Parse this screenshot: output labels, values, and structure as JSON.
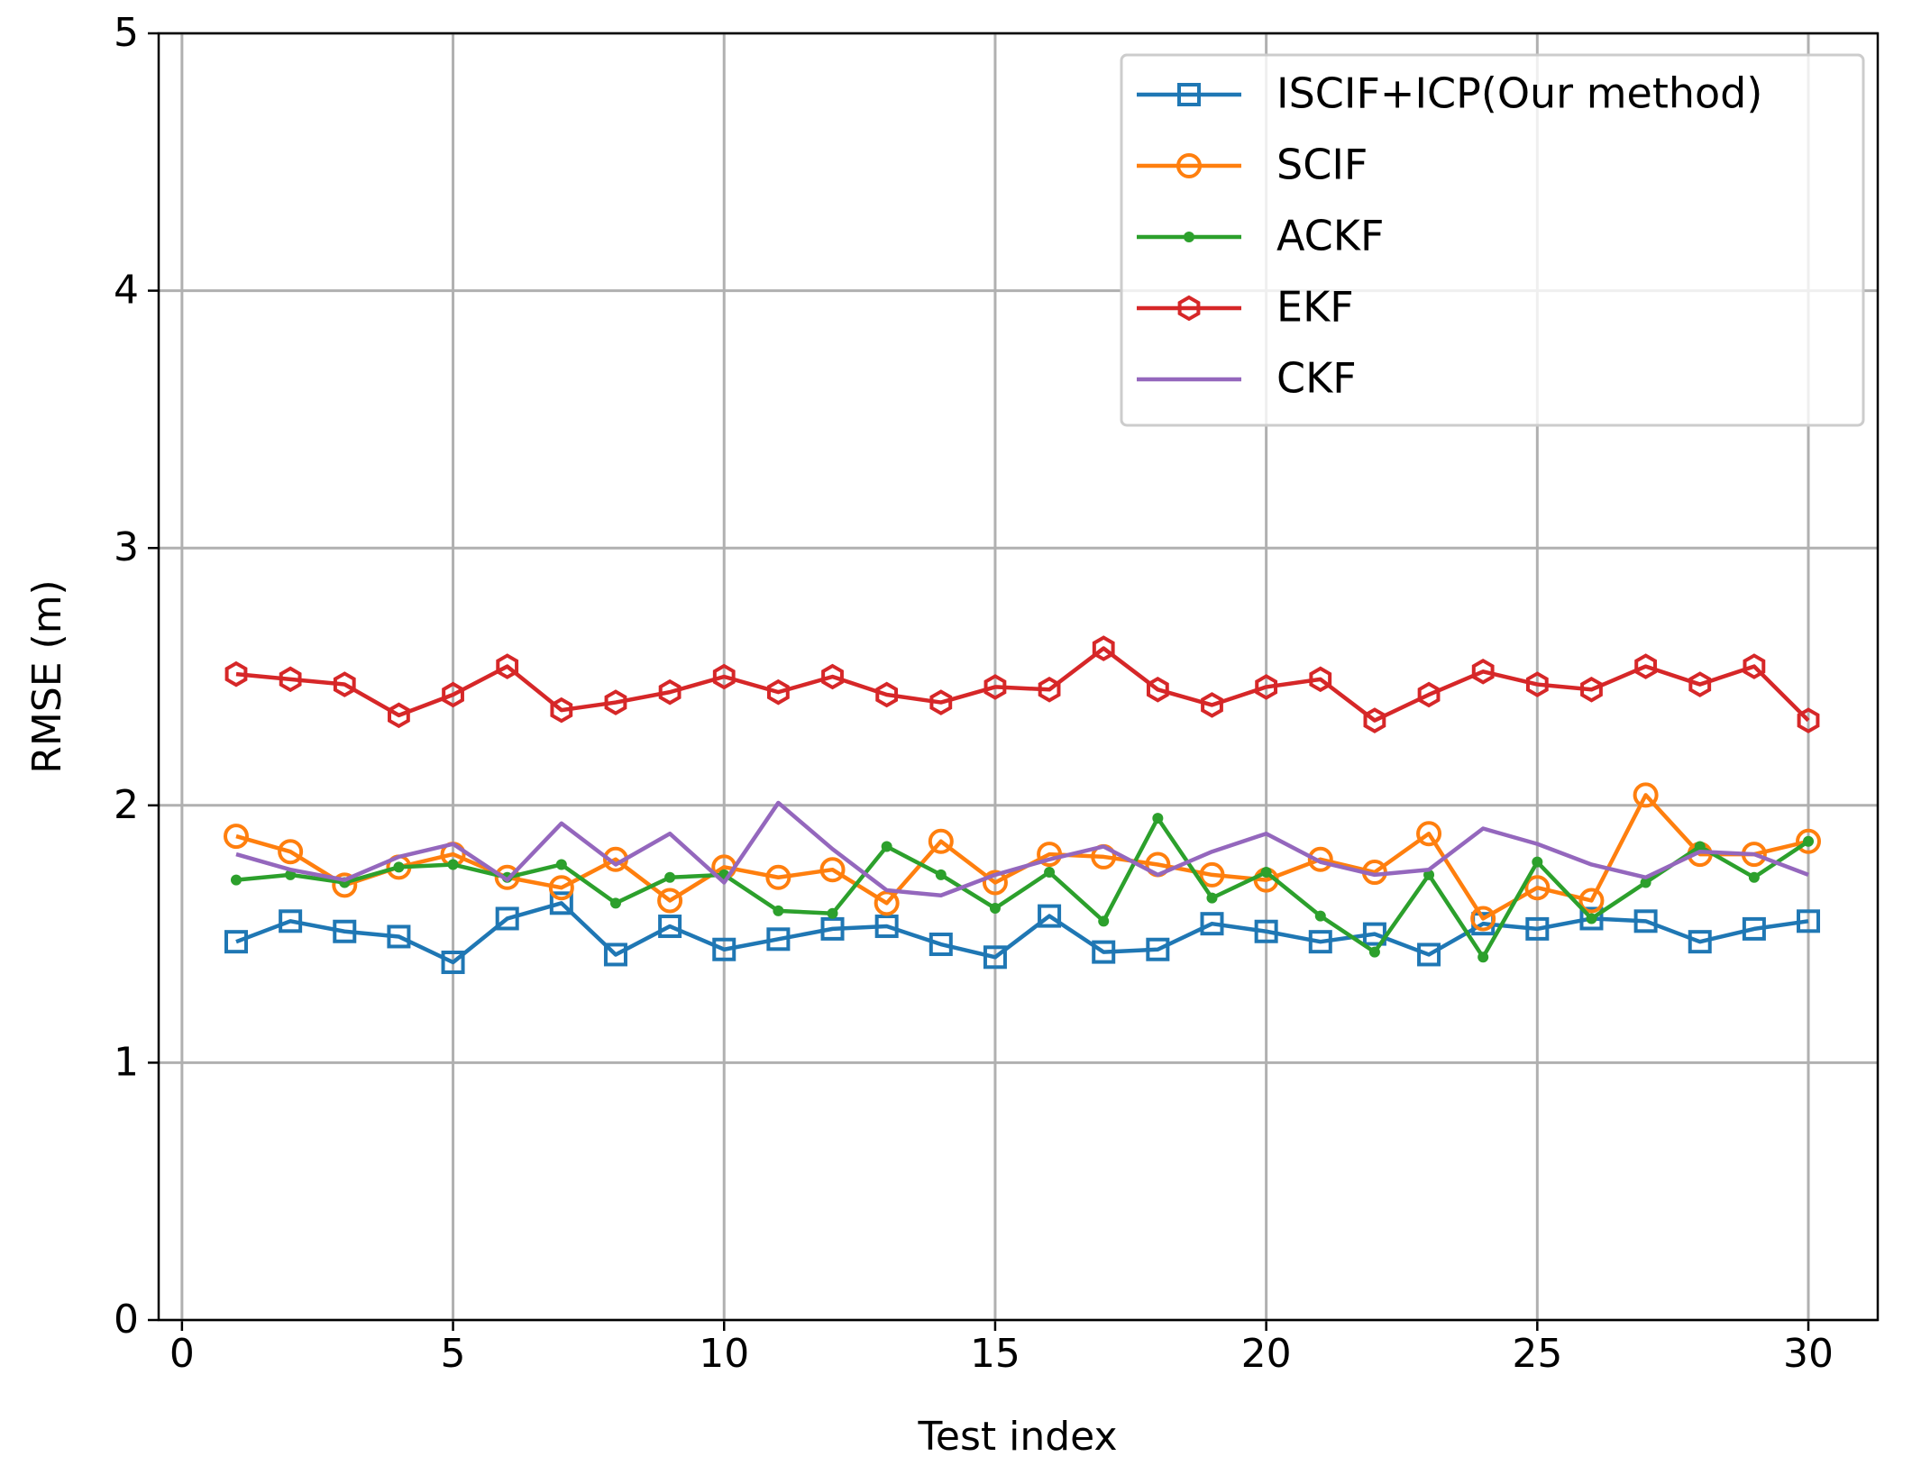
{
  "chart_data": {
    "type": "line",
    "xlabel": "Test index",
    "ylabel": "RMSE (m)",
    "x": [
      1,
      2,
      3,
      4,
      5,
      6,
      7,
      8,
      9,
      10,
      11,
      12,
      13,
      14,
      15,
      16,
      17,
      18,
      19,
      20,
      21,
      22,
      23,
      24,
      25,
      26,
      27,
      28,
      29,
      30
    ],
    "series": [
      {
        "name": "ISCIF+ICP(Our method)",
        "color": "#1f77b4",
        "marker": "square",
        "values": [
          1.47,
          1.55,
          1.51,
          1.49,
          1.39,
          1.56,
          1.62,
          1.42,
          1.53,
          1.44,
          1.48,
          1.52,
          1.53,
          1.46,
          1.41,
          1.57,
          1.43,
          1.44,
          1.54,
          1.51,
          1.47,
          1.5,
          1.42,
          1.54,
          1.52,
          1.56,
          1.55,
          1.47,
          1.52,
          1.55
        ]
      },
      {
        "name": "SCIF",
        "color": "#ff7f0e",
        "marker": "circle",
        "values": [
          1.88,
          1.82,
          1.69,
          1.76,
          1.81,
          1.72,
          1.68,
          1.79,
          1.63,
          1.76,
          1.72,
          1.75,
          1.62,
          1.86,
          1.7,
          1.81,
          1.8,
          1.77,
          1.73,
          1.71,
          1.79,
          1.74,
          1.89,
          1.56,
          1.68,
          1.63,
          2.04,
          1.81,
          1.81,
          1.86
        ]
      },
      {
        "name": "ACKF",
        "color": "#2ca02c",
        "marker": "point",
        "values": [
          1.71,
          1.73,
          1.7,
          1.76,
          1.77,
          1.72,
          1.77,
          1.62,
          1.72,
          1.73,
          1.59,
          1.58,
          1.84,
          1.73,
          1.6,
          1.74,
          1.55,
          1.95,
          1.64,
          1.74,
          1.57,
          1.43,
          1.73,
          1.41,
          1.78,
          1.56,
          1.7,
          1.84,
          1.72,
          1.86
        ]
      },
      {
        "name": "EKF",
        "color": "#d62728",
        "marker": "hexagon",
        "values": [
          2.51,
          2.49,
          2.47,
          2.35,
          2.43,
          2.54,
          2.37,
          2.4,
          2.44,
          2.5,
          2.44,
          2.5,
          2.43,
          2.4,
          2.46,
          2.45,
          2.61,
          2.45,
          2.39,
          2.46,
          2.49,
          2.33,
          2.43,
          2.52,
          2.47,
          2.45,
          2.54,
          2.47,
          2.54,
          2.33
        ]
      },
      {
        "name": "CKF",
        "color": "#9467bd",
        "marker": "none",
        "values": [
          1.81,
          1.75,
          1.71,
          1.8,
          1.85,
          1.71,
          1.93,
          1.77,
          1.89,
          1.7,
          2.01,
          1.83,
          1.67,
          1.65,
          1.73,
          1.79,
          1.84,
          1.73,
          1.82,
          1.89,
          1.78,
          1.73,
          1.75,
          1.91,
          1.85,
          1.77,
          1.72,
          1.82,
          1.81,
          1.73
        ]
      }
    ],
    "xlim": [
      -0.43,
      31.28
    ],
    "xticks": [
      0,
      5,
      10,
      15,
      20,
      25,
      30
    ],
    "ylim": [
      0,
      5
    ],
    "yticks": [
      0,
      1,
      2,
      3,
      4,
      5
    ],
    "grid": true,
    "legend": "upper-right"
  }
}
